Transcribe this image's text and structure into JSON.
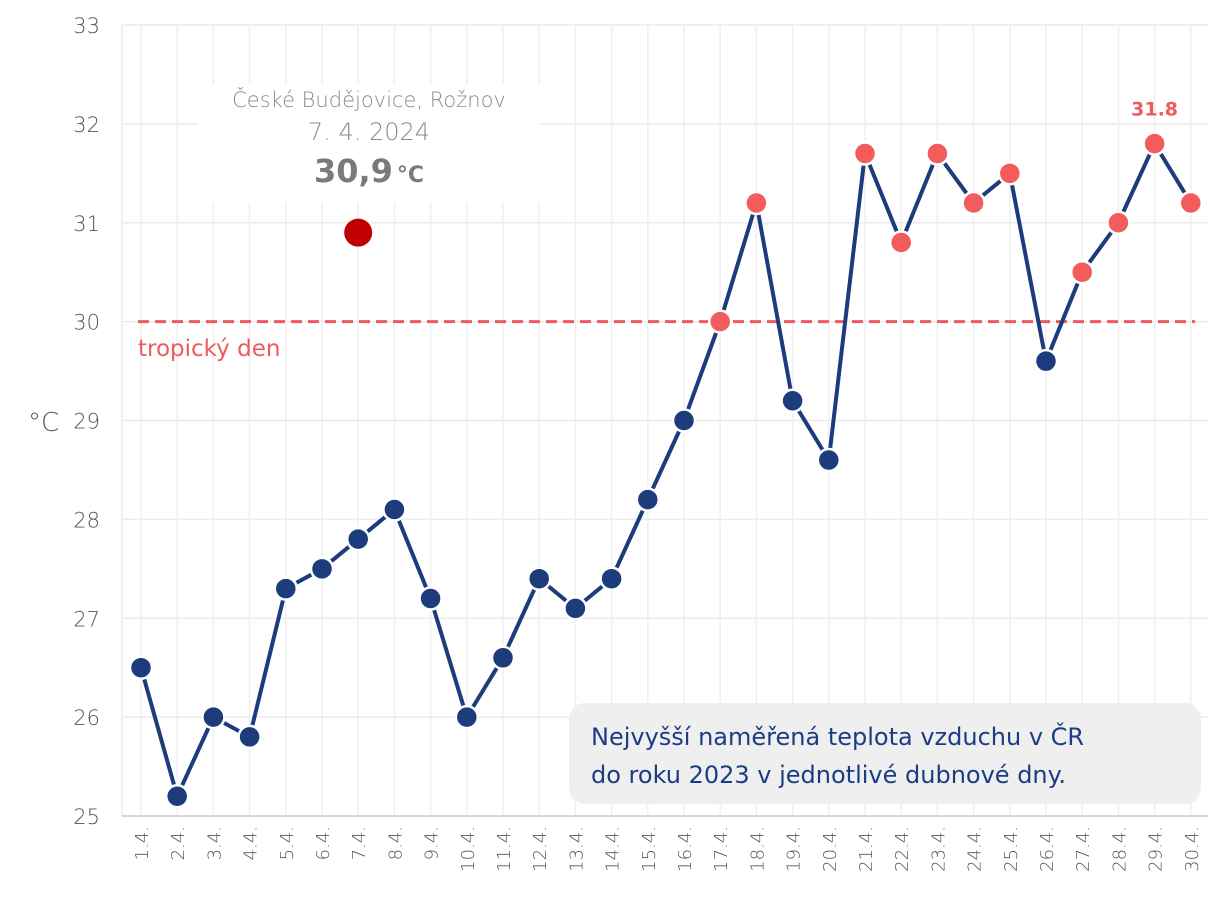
{
  "chart_data": {
    "type": "line",
    "ylabel": "°C",
    "ylim": [
      25,
      33
    ],
    "yticks": [
      "25",
      "26",
      "27",
      "28",
      "29",
      "30",
      "31",
      "32",
      "33"
    ],
    "categories": [
      "1.4.",
      "2.4.",
      "3.4.",
      "4.4.",
      "5.4.",
      "6.4.",
      "7.4.",
      "8.4.",
      "9.4.",
      "10.4.",
      "11.4.",
      "12.4.",
      "13.4.",
      "14.4.",
      "15.4.",
      "16.4.",
      "17.4.",
      "18.4.",
      "19.4.",
      "20.4.",
      "21.4.",
      "22.4.",
      "23.4.",
      "24.4.",
      "25.4.",
      "26.4.",
      "27.4.",
      "28.4.",
      "29.4.",
      "30.4."
    ],
    "series": [
      {
        "values": [
          26.5,
          25.2,
          26.0,
          25.8,
          27.3,
          27.5,
          27.8,
          28.1,
          27.2,
          26.0,
          26.6,
          27.4,
          27.1,
          27.4,
          28.2,
          29.0,
          30.0,
          31.2,
          29.2,
          28.6,
          31.7,
          30.8,
          31.7,
          31.2,
          31.5,
          29.6,
          30.5,
          31.0,
          31.8,
          31.2
        ]
      }
    ],
    "highlight": {
      "category": "7.4.",
      "value": 30.9
    },
    "threshold": {
      "value": 30,
      "label": "tropický den"
    },
    "max_label": "31.8",
    "grid": true,
    "colors": {
      "line": "#1c3c7c",
      "above_threshold": "#f25c5c",
      "highlight": "#c00000",
      "threshold": "#f05a5a"
    }
  },
  "tooltip": {
    "place": "České Budějovice, Rožnov",
    "date": "7. 4. 2024",
    "value": "30,9",
    "unit": "°C"
  },
  "note": {
    "line1": "Nejvyšší naměřená teplota vzduchu v ČR",
    "line2": "do roku 2023 v jednotlivé dubnové dny."
  }
}
